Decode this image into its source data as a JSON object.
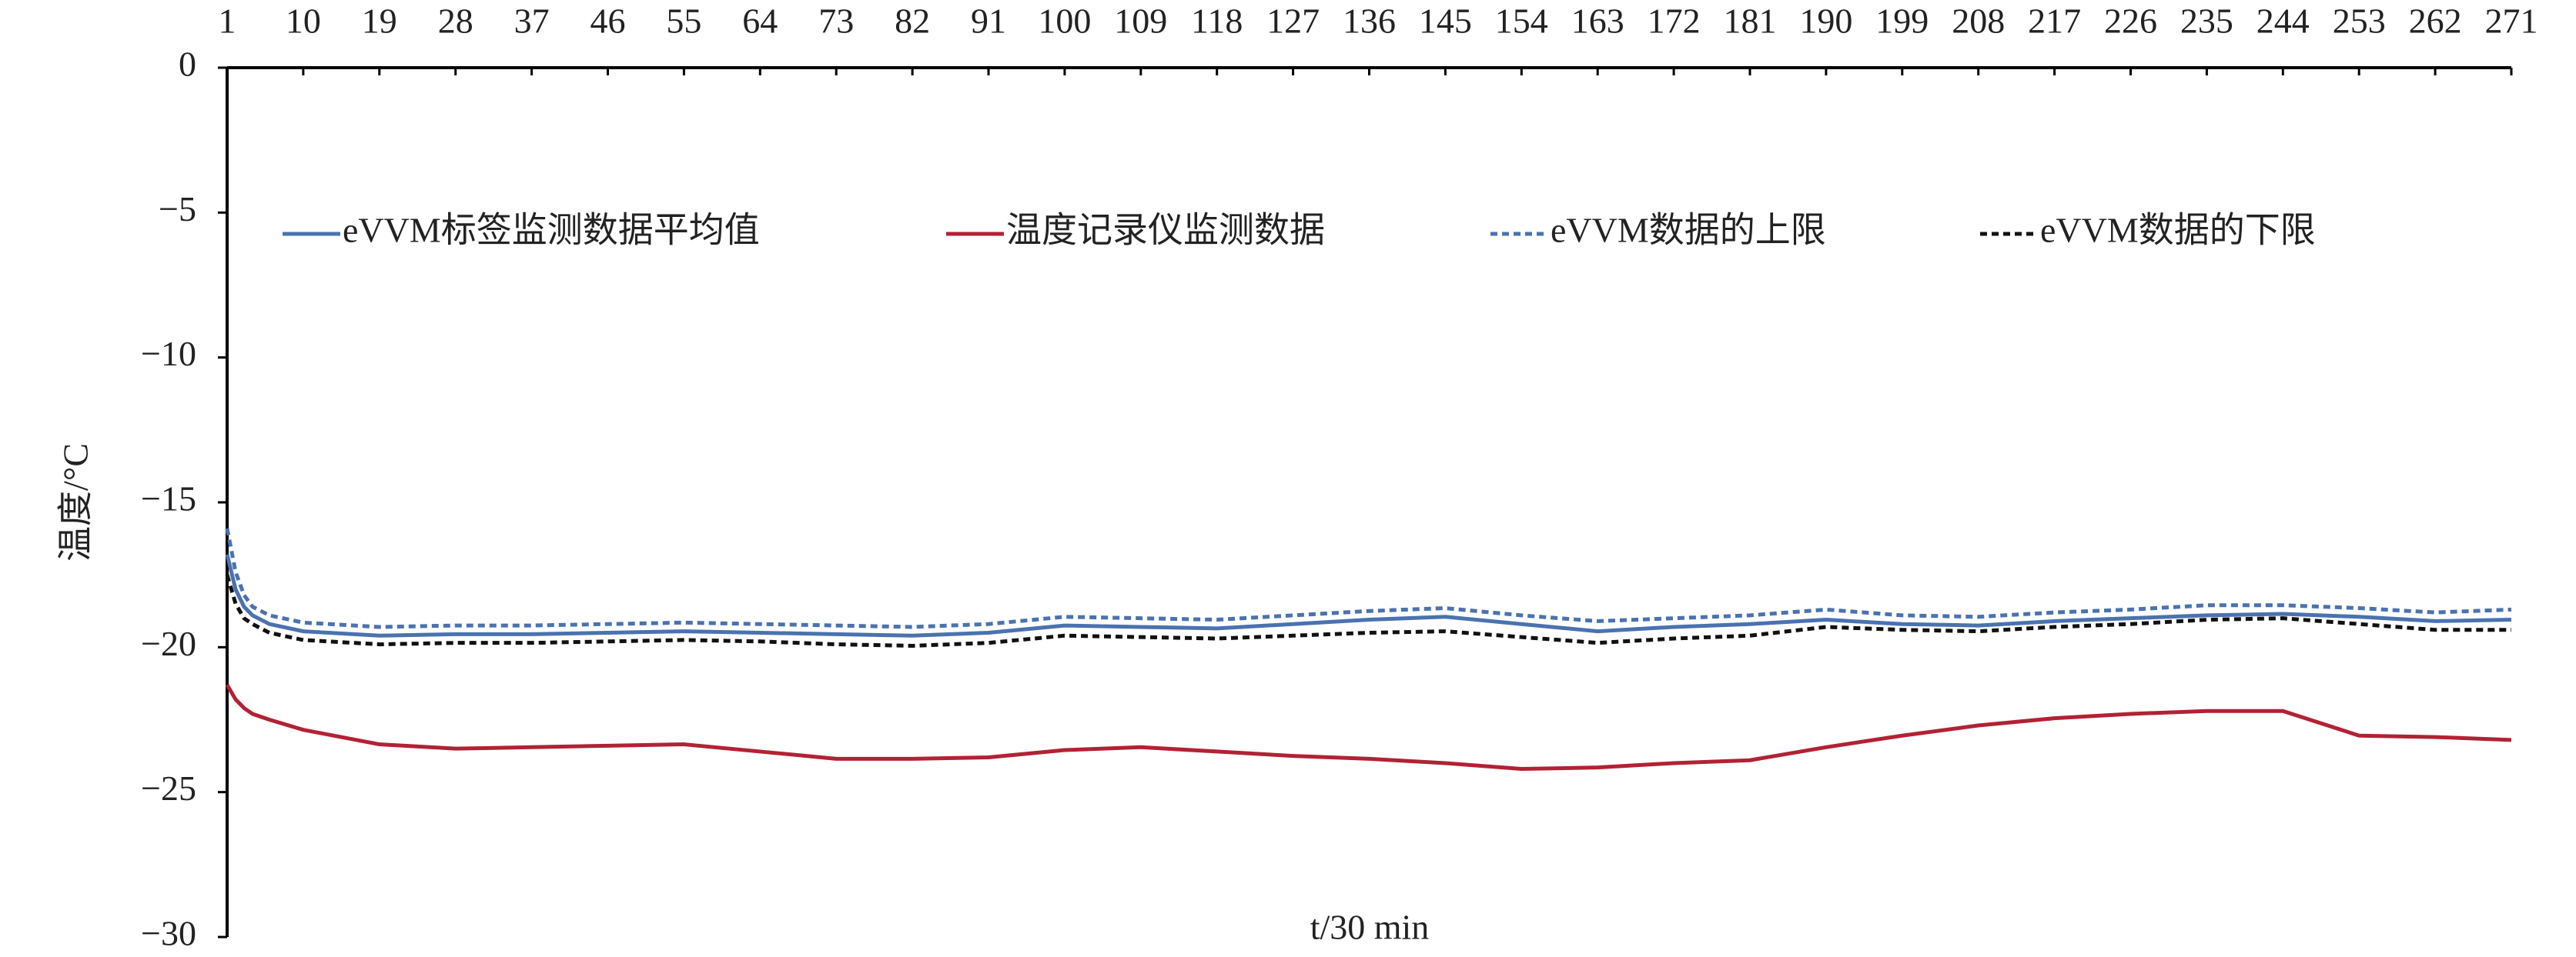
{
  "chart_data": {
    "type": "line",
    "y_label": "温度/°C",
    "x_label": "t/30 min",
    "x": [
      1,
      2,
      3,
      4,
      6,
      10,
      19,
      28,
      37,
      46,
      55,
      64,
      73,
      82,
      91,
      100,
      109,
      118,
      127,
      136,
      145,
      154,
      163,
      172,
      181,
      190,
      199,
      208,
      217,
      226,
      235,
      244,
      253,
      262,
      271
    ],
    "series": [
      {
        "name": "eVVM标签监测数据平均值",
        "color": "#4a72b0",
        "dash": false,
        "values": [
          -16.8,
          -18.0,
          -18.6,
          -18.9,
          -19.2,
          -19.45,
          -19.6,
          -19.55,
          -19.55,
          -19.5,
          -19.45,
          -19.5,
          -19.55,
          -19.6,
          -19.5,
          -19.25,
          -19.3,
          -19.35,
          -19.2,
          -19.05,
          -18.95,
          -19.2,
          -19.45,
          -19.3,
          -19.2,
          -19.05,
          -19.2,
          -19.25,
          -19.1,
          -19.0,
          -18.9,
          -18.85,
          -18.95,
          -19.1,
          -19.05
        ]
      },
      {
        "name": "温度记录仪监测数据",
        "color": "#b22234",
        "dash": false,
        "values": [
          -21.3,
          -21.8,
          -22.1,
          -22.3,
          -22.5,
          -22.85,
          -23.35,
          -23.5,
          -23.45,
          -23.4,
          -23.35,
          -23.6,
          -23.85,
          -23.85,
          -23.8,
          -23.55,
          -23.45,
          -23.6,
          -23.75,
          -23.85,
          -24.0,
          -24.2,
          -24.15,
          -24.0,
          -23.9,
          -23.45,
          -23.05,
          -22.7,
          -22.45,
          -22.3,
          -22.2,
          -22.2,
          -23.05,
          -23.1,
          -23.2
        ]
      },
      {
        "name": "eVVM数据的上限",
        "color": "#4a72b0",
        "dash": true,
        "values": [
          -15.9,
          -17.4,
          -18.2,
          -18.6,
          -18.9,
          -19.15,
          -19.3,
          -19.25,
          -19.25,
          -19.2,
          -19.15,
          -19.2,
          -19.25,
          -19.3,
          -19.2,
          -18.95,
          -19.0,
          -19.05,
          -18.9,
          -18.75,
          -18.65,
          -18.9,
          -19.1,
          -19.0,
          -18.9,
          -18.7,
          -18.9,
          -18.95,
          -18.8,
          -18.7,
          -18.55,
          -18.55,
          -18.65,
          -18.8,
          -18.7
        ]
      },
      {
        "name": "eVVM数据的下限",
        "color": "#111111",
        "dash": true,
        "values": [
          -17.5,
          -18.5,
          -19.0,
          -19.2,
          -19.5,
          -19.75,
          -19.9,
          -19.85,
          -19.85,
          -19.8,
          -19.75,
          -19.8,
          -19.9,
          -19.95,
          -19.85,
          -19.6,
          -19.65,
          -19.7,
          -19.6,
          -19.5,
          -19.45,
          -19.65,
          -19.85,
          -19.7,
          -19.6,
          -19.3,
          -19.4,
          -19.45,
          -19.3,
          -19.2,
          -19.05,
          -19.0,
          -19.2,
          -19.4,
          -19.4
        ]
      }
    ],
    "xlim": [
      1,
      271
    ],
    "xticks": [
      1,
      10,
      19,
      28,
      37,
      46,
      55,
      64,
      73,
      82,
      91,
      100,
      109,
      118,
      127,
      136,
      145,
      154,
      163,
      172,
      181,
      190,
      199,
      208,
      217,
      226,
      235,
      244,
      253,
      262,
      271
    ],
    "ylim": [
      -30,
      0
    ],
    "yticks": [
      0,
      {
        "value": -5,
        "label": "−5"
      },
      {
        "value": -10,
        "label": "−10"
      },
      {
        "value": -15,
        "label": "−15"
      },
      {
        "value": -20,
        "label": "−20"
      },
      {
        "value": -25,
        "label": "−25"
      },
      {
        "value": -30,
        "label": "−30"
      }
    ]
  }
}
